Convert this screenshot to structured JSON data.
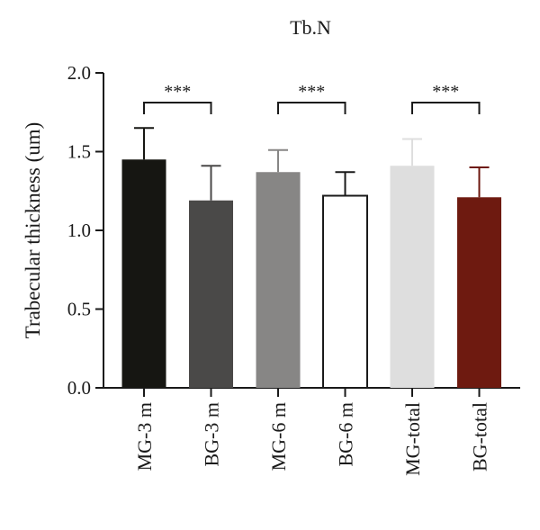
{
  "chart_data": {
    "type": "bar",
    "title": "Tb.N",
    "xlabel": "",
    "ylabel": "Trabecular thickness (um)",
    "ylim": [
      0,
      2.0
    ],
    "yticks": [
      "0.0",
      "0.5",
      "1.0",
      "1.5",
      "2.0"
    ],
    "grid": false,
    "legend": "none",
    "categories": [
      "MG-3 m",
      "BG-3 m",
      "MG-6 m",
      "BG-6 m",
      "MG-total",
      "BG-total"
    ],
    "values": [
      1.45,
      1.19,
      1.37,
      1.22,
      1.41,
      1.21
    ],
    "errors": [
      0.2,
      0.22,
      0.14,
      0.15,
      0.17,
      0.19
    ],
    "colors": [
      "#161612",
      "#4a4948",
      "#878685",
      "#ffffff",
      "#dedede",
      "#6e1a10"
    ],
    "edge_color": "#1a1a1a",
    "significance": [
      {
        "from": 0,
        "to": 1,
        "label": "***"
      },
      {
        "from": 2,
        "to": 3,
        "label": "***"
      },
      {
        "from": 4,
        "to": 5,
        "label": "***"
      }
    ]
  }
}
